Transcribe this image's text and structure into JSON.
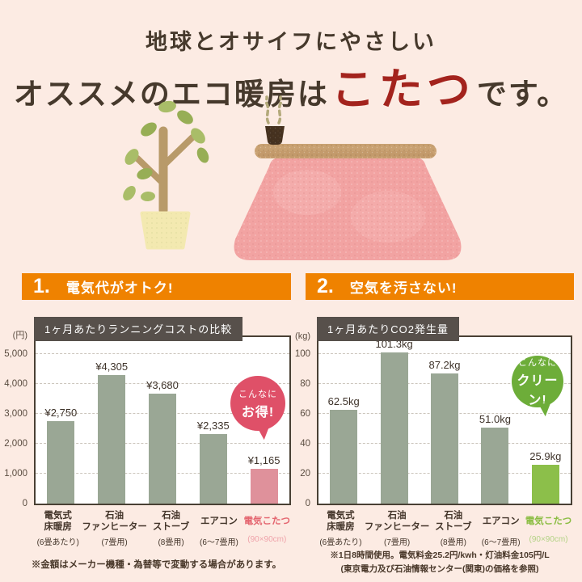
{
  "theme": {
    "background": "#fcebe3",
    "accent_orange": "#ef8200",
    "chart_title_bg": "#57504b",
    "title_red": "#a3231d",
    "bar_gray_green": "#9aa795",
    "bar_pink": "#df919b",
    "bar_green": "#8cbf4a",
    "badge_pink": "#df5068",
    "badge_green": "#6dad39"
  },
  "header": {
    "line1": "地球とオサイフにやさしい",
    "line2_prefix": "オススメのエコ暖房は",
    "line2_highlight": "こたつ",
    "line2_suffix": "です。"
  },
  "illustration": {
    "items": [
      "potted-plant",
      "kotatsu-with-teacup-and-steam"
    ]
  },
  "sections": [
    {
      "number": "1.",
      "title": "電気代がオトク!"
    },
    {
      "number": "2.",
      "title": "空気を汚さない!"
    }
  ],
  "chart_data": [
    {
      "type": "bar",
      "title": "1ヶ月あたりランニングコストの比較",
      "unit": "(円)",
      "ylim": [
        0,
        5000
      ],
      "ymax": 5000,
      "yticks": [
        "5,000",
        "4,000",
        "3,000",
        "2,000",
        "1,000",
        "0"
      ],
      "grid": "dashed-horizontal",
      "legend": "none",
      "categories": [
        {
          "line1": "電気式",
          "line2": "床暖房",
          "sub": "(6畳あたり)"
        },
        {
          "line1": "石油",
          "line2": "ファンヒーター",
          "sub": "(7畳用)"
        },
        {
          "line1": "石油",
          "line2": "ストーブ",
          "sub": "(8畳用)"
        },
        {
          "line1": "エアコン",
          "line2": "",
          "sub": "(6〜7畳用)"
        },
        {
          "line1": "電気こたつ",
          "line2": "",
          "sub": "(90×90cm)"
        }
      ],
      "values": [
        2750,
        4305,
        3680,
        2335,
        1165
      ],
      "value_labels": [
        "¥2,750",
        "¥4,305",
        "¥3,680",
        "¥2,335",
        "¥1,165"
      ],
      "highlight_index": 4,
      "bar_color": "#9aa795",
      "highlight_color": "#df919b",
      "highlight_label_color": "#e4656f",
      "highlight_sub_color": "#efa3aa",
      "badge": {
        "line1": "こんなに",
        "line2": "お得!",
        "color": "#df5068"
      }
    },
    {
      "type": "bar",
      "title": "1ヶ月あたりCO2発生量",
      "unit": "(kg)",
      "ylim": [
        0,
        100
      ],
      "ymax": 100,
      "yticks": [
        "100",
        "80",
        "60",
        "40",
        "20",
        "0"
      ],
      "grid": "dashed-horizontal",
      "legend": "none",
      "categories": [
        {
          "line1": "電気式",
          "line2": "床暖房",
          "sub": "(6畳あたり)"
        },
        {
          "line1": "石油",
          "line2": "ファンヒーター",
          "sub": "(7畳用)"
        },
        {
          "line1": "石油",
          "line2": "ストーブ",
          "sub": "(8畳用)"
        },
        {
          "line1": "エアコン",
          "line2": "",
          "sub": "(6〜7畳用)"
        },
        {
          "line1": "電気こたつ",
          "line2": "",
          "sub": "(90×90cm)"
        }
      ],
      "values": [
        62.5,
        101.3,
        87.2,
        51.0,
        25.9
      ],
      "value_labels": [
        "62.5kg",
        "101.3kg",
        "87.2kg",
        "51.0kg",
        "25.9kg"
      ],
      "highlight_index": 4,
      "bar_color": "#9aa795",
      "highlight_color": "#8cbf4a",
      "highlight_label_color": "#8bbd43",
      "highlight_sub_color": "#b3d285",
      "badge": {
        "line1": "こんなに",
        "line2": "クリーン!",
        "color": "#6dad39"
      }
    }
  ],
  "notes": {
    "left": "※金額はメーカー機種・為替等で変動する場合があります。",
    "right_line1": "※1日8時間使用。電気料金25.2円/kwh・灯油料金105円/L",
    "right_line2": "(東京電力及び石油情報センター(関東)の価格を参照)"
  }
}
